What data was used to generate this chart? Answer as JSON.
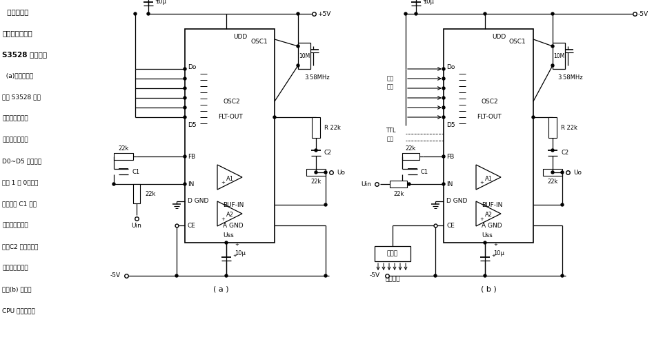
{
  "bg_color": "#ffffff",
  "fig_w": 9.61,
  "fig_h": 4.99,
  "dpi": 100,
  "text_block": [
    [
      "  可编程开关",
      7.5,
      true
    ],
    [
      "电容低通滤波器",
      7.5,
      true
    ],
    [
      "S3528 滤波电路",
      7.5,
      true
    ],
    [
      "  (a)电路是集成",
      6.5,
      false
    ],
    [
      "电路 S3528 单独",
      6.5,
      false
    ],
    [
      "作为开关电容滤",
      6.5,
      false
    ],
    [
      "波器应用电路。",
      6.5,
      false
    ],
    [
      "D0~D5 各位数据",
      6.5,
      false
    ],
    [
      "任选 1 或 0。输入",
      6.5,
      false
    ],
    [
      "缓冲器的 C1 的功",
      6.5,
      false
    ],
    [
      "能是防止混迭现",
      6.5,
      false
    ],
    [
      "象；C2 的功能是消",
      6.5,
      false
    ],
    [
      "除时钟产生的噪",
      6.5,
      false
    ],
    [
      "声。(b) 电路与",
      6.5,
      false
    ],
    [
      "CPU 接口使用。",
      6.5,
      false
    ]
  ]
}
